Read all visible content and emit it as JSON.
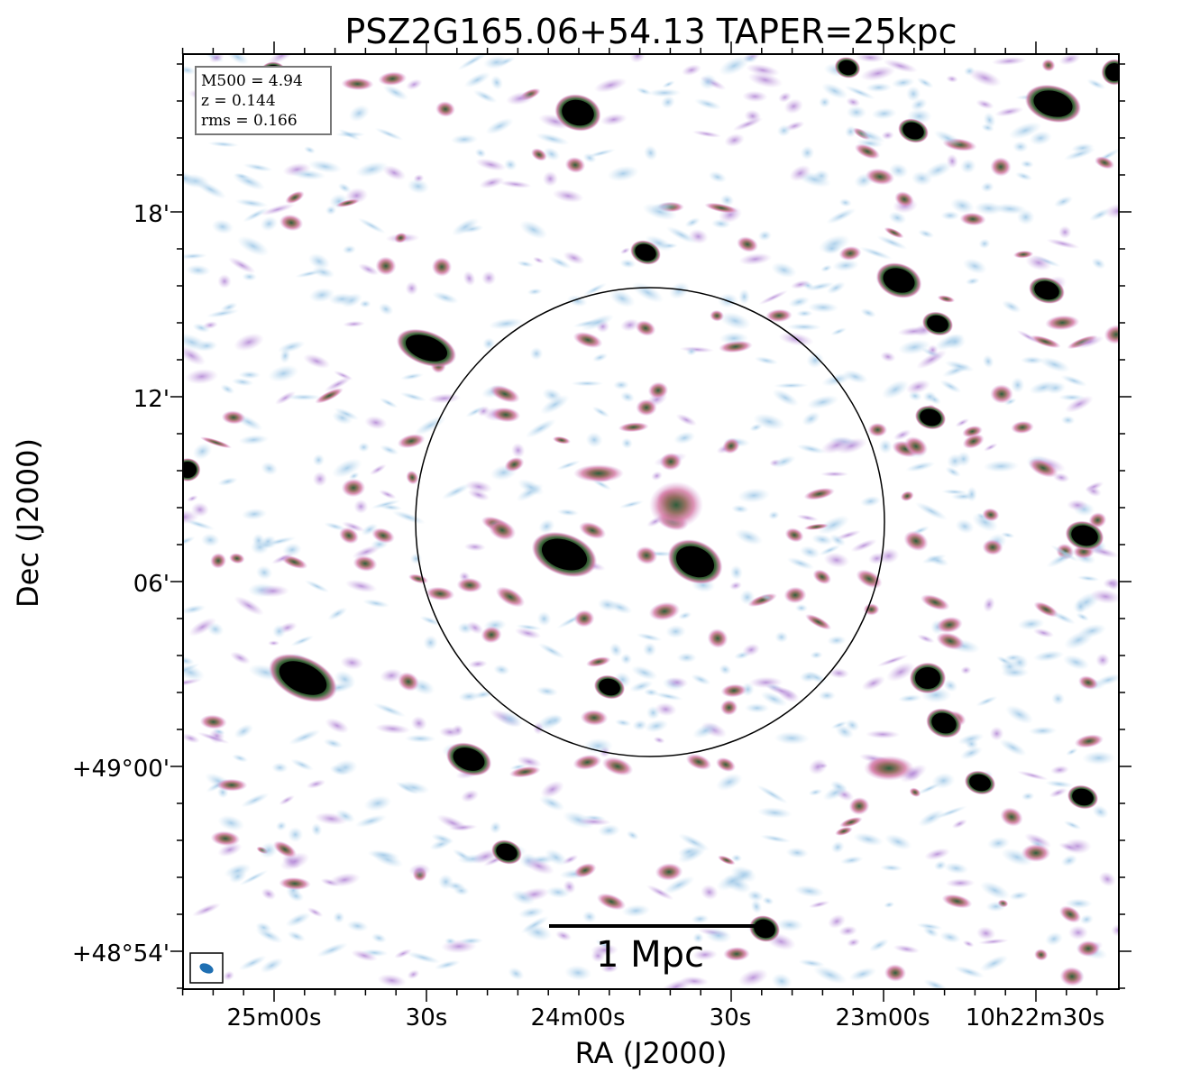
{
  "chart_data": {
    "type": "heatmap",
    "title": "PSZ2G165.06+54.13 TAPER=25kpc",
    "xlabel": "RA (J2000)",
    "ylabel": "Dec (J2000)",
    "x_ticks": [
      "25m00s",
      "30s",
      "24m00s",
      "30s",
      "23m00s",
      "10h22m30s"
    ],
    "y_ticks": [
      "18'",
      "12'",
      "06'",
      "+49°00'",
      "+48°54'"
    ],
    "info_box": [
      "M500 = 4.94",
      "z = 0.144",
      "rms = 0.166"
    ],
    "scale_bar_label": "1 Mpc",
    "circle": "cluster R500 circle",
    "colormap": "cubehelix-like: light blue → purple → pink → green → black",
    "colors": {
      "low": "#b9d6ec",
      "mid": "#c8a0dc",
      "pink": "#d77fa8",
      "high": "#3d6b3f",
      "peak": "#000000",
      "beam": "#1f6fb2"
    }
  }
}
